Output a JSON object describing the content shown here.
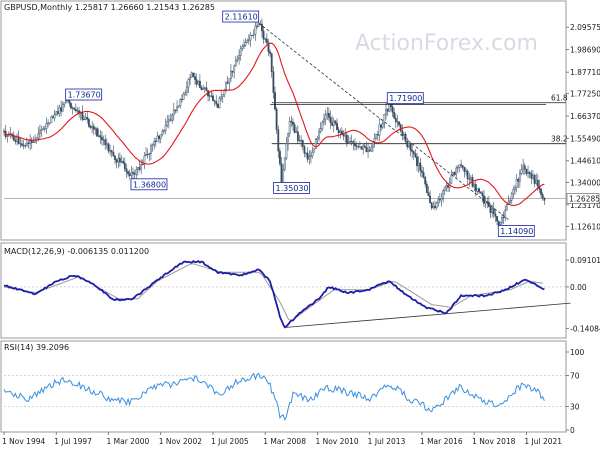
{
  "header": {
    "symbol": "GBPUSD,Monthly",
    "ohlc": "1.25817 1.26660 1.21543 1.26285"
  },
  "watermark": "ActionForex.com",
  "colors": {
    "candle": "#34495e",
    "ma": "#e3171b",
    "macd": "#1c1ca8",
    "signal": "#9a9a9a",
    "rsi": "#3a8fe0",
    "label_border": "#1c1ca8"
  },
  "chart_data": [
    {
      "type": "candlestick",
      "name": "price",
      "ylim": [
        1.08,
        2.16
      ],
      "y_ticks": [
        "2.09575",
        "1.98690",
        "1.87710",
        "1.77250",
        "1.66370",
        "1.55490",
        "1.44610",
        "1.34000",
        "1.23170",
        "1.12610"
      ],
      "y_tick_values": [
        2.09575,
        1.9869,
        1.8771,
        1.7725,
        1.6637,
        1.5549,
        1.4461,
        1.34,
        1.2317,
        1.1261
      ],
      "current_price": "1.26285",
      "current_value": 1.26285,
      "x_ticks": [
        "1 Nov 1994",
        "1 Jul 1997",
        "1 Mar 2000",
        "1 Nov 2002",
        "1 Jul 2005",
        "1 Mar 2008",
        "1 Nov 2010",
        "1 Jul 2013",
        "1 Mar 2016",
        "1 Nov 2018",
        "1 Jul 2021"
      ],
      "x_range": [
        "1994-11",
        "2022-07"
      ],
      "key_points": [
        {
          "date": "1994-11",
          "value": 1.58
        },
        {
          "date": "1996-01",
          "value": 1.52
        },
        {
          "date": "1997-06",
          "value": 1.66
        },
        {
          "date": "1998-02",
          "value": 1.7367,
          "label": "1.73670"
        },
        {
          "date": "1999-06",
          "value": 1.6
        },
        {
          "date": "2000-06",
          "value": 1.47
        },
        {
          "date": "2001-06",
          "value": 1.368,
          "label": "1.36800"
        },
        {
          "date": "2002-06",
          "value": 1.52
        },
        {
          "date": "2003-06",
          "value": 1.66
        },
        {
          "date": "2004-06",
          "value": 1.86
        },
        {
          "date": "2005-10",
          "value": 1.72
        },
        {
          "date": "2006-12",
          "value": 1.98
        },
        {
          "date": "2007-11",
          "value": 2.1161,
          "label": "2.11610"
        },
        {
          "date": "2008-06",
          "value": 1.97
        },
        {
          "date": "2008-11",
          "value": 1.5
        },
        {
          "date": "2009-01",
          "value": 1.3503,
          "label": "1.35030"
        },
        {
          "date": "2009-06",
          "value": 1.64
        },
        {
          "date": "2010-06",
          "value": 1.45
        },
        {
          "date": "2011-04",
          "value": 1.67
        },
        {
          "date": "2012-06",
          "value": 1.54
        },
        {
          "date": "2013-07",
          "value": 1.49
        },
        {
          "date": "2014-07",
          "value": 1.719,
          "label": "1.71900"
        },
        {
          "date": "2015-06",
          "value": 1.53
        },
        {
          "date": "2016-01",
          "value": 1.42
        },
        {
          "date": "2016-10",
          "value": 1.21
        },
        {
          "date": "2018-02",
          "value": 1.43
        },
        {
          "date": "2019-08",
          "value": 1.22
        },
        {
          "date": "2020-03",
          "value": 1.1409,
          "label": "1.14090"
        },
        {
          "date": "2021-05",
          "value": 1.42
        },
        {
          "date": "2022-02",
          "value": 1.33
        },
        {
          "date": "2022-06",
          "value": 1.26285
        }
      ],
      "fib_levels": [
        {
          "label": "61.8",
          "value": 1.7283
        },
        {
          "label": "38.2",
          "value": 1.5292
        }
      ],
      "horizontal_line": {
        "value": 1.719,
        "from": "2008-06",
        "to": "2022-07"
      },
      "trendline": {
        "from": {
          "date": "2007-11",
          "value": 2.1161
        },
        "to": {
          "date": "2020-08",
          "value": 1.16
        }
      },
      "moving_average": {
        "color": "#e3171b"
      }
    },
    {
      "type": "line",
      "name": "macd",
      "title": "MACD(12,26,9) -0.006135 0.011200",
      "ylim": [
        -0.16,
        0.105
      ],
      "y_ticks": [
        "0.091015",
        "0.00",
        "-0.140843"
      ],
      "y_tick_values": [
        0.091015,
        0,
        -0.140843
      ],
      "series": [
        {
          "points": [
            {
              "date": "1994-11",
              "value": 0.005
            },
            {
              "date": "1995-06",
              "value": -0.005
            },
            {
              "date": "1996-06",
              "value": -0.025
            },
            {
              "date": "1997-06",
              "value": 0.015
            },
            {
              "date": "1998-06",
              "value": 0.04
            },
            {
              "date": "1999-06",
              "value": 0.01
            },
            {
              "date": "2000-06",
              "value": -0.045
            },
            {
              "date": "2001-06",
              "value": -0.04
            },
            {
              "date": "2002-06",
              "value": 0.01
            },
            {
              "date": "2003-06",
              "value": 0.06
            },
            {
              "date": "2004-01",
              "value": 0.085
            },
            {
              "date": "2004-12",
              "value": 0.085
            },
            {
              "date": "2005-10",
              "value": 0.05
            },
            {
              "date": "2006-12",
              "value": 0.04
            },
            {
              "date": "2007-11",
              "value": 0.058
            },
            {
              "date": "2008-06",
              "value": 0.02
            },
            {
              "date": "2008-12",
              "value": -0.1
            },
            {
              "date": "2009-03",
              "value": -0.138
            },
            {
              "date": "2009-12",
              "value": -0.09
            },
            {
              "date": "2010-12",
              "value": -0.04
            },
            {
              "date": "2011-06",
              "value": 0.0
            },
            {
              "date": "2012-06",
              "value": -0.02
            },
            {
              "date": "2013-06",
              "value": -0.01
            },
            {
              "date": "2014-07",
              "value": 0.02
            },
            {
              "date": "2015-06",
              "value": -0.03
            },
            {
              "date": "2016-06",
              "value": -0.07
            },
            {
              "date": "2017-06",
              "value": -0.09
            },
            {
              "date": "2018-03",
              "value": -0.03
            },
            {
              "date": "2019-06",
              "value": -0.03
            },
            {
              "date": "2020-06",
              "value": -0.01
            },
            {
              "date": "2021-06",
              "value": 0.025
            },
            {
              "date": "2022-06",
              "value": -0.006135
            }
          ]
        }
      ],
      "signal": [
        {
          "date": "1994-11",
          "value": 0.0
        },
        {
          "date": "1996-06",
          "value": -0.02
        },
        {
          "date": "1997-09",
          "value": 0.01
        },
        {
          "date": "1998-09",
          "value": 0.035
        },
        {
          "date": "2000-09",
          "value": -0.04
        },
        {
          "date": "2001-09",
          "value": -0.04
        },
        {
          "date": "2002-09",
          "value": 0.02
        },
        {
          "date": "2004-06",
          "value": 0.08
        },
        {
          "date": "2005-12",
          "value": 0.05
        },
        {
          "date": "2007-12",
          "value": 0.05
        },
        {
          "date": "2008-12",
          "value": -0.05
        },
        {
          "date": "2009-06",
          "value": -0.12
        },
        {
          "date": "2010-06",
          "value": -0.07
        },
        {
          "date": "2011-09",
          "value": -0.01
        },
        {
          "date": "2013-06",
          "value": -0.01
        },
        {
          "date": "2014-10",
          "value": 0.02
        },
        {
          "date": "2016-09",
          "value": -0.06
        },
        {
          "date": "2017-09",
          "value": -0.07
        },
        {
          "date": "2018-09",
          "value": -0.03
        },
        {
          "date": "2020-09",
          "value": -0.01
        },
        {
          "date": "2021-09",
          "value": 0.02
        },
        {
          "date": "2022-06",
          "value": 0.0112
        }
      ],
      "trendline": {
        "from": {
          "date": "2009-03",
          "value": -0.138
        },
        "to": {
          "date": "2023-10",
          "value": -0.055
        }
      }
    },
    {
      "type": "line",
      "name": "rsi",
      "title": "RSI(14) 39.2096",
      "ylim": [
        0,
        100
      ],
      "y_ticks": [
        "100",
        "70",
        "30",
        "0"
      ],
      "y_tick_values": [
        100,
        70,
        30,
        0
      ],
      "series": [
        {
          "points": [
            {
              "date": "1994-11",
              "value": 50
            },
            {
              "date": "1995-06",
              "value": 45
            },
            {
              "date": "1996-03",
              "value": 40
            },
            {
              "date": "1997-06",
              "value": 60
            },
            {
              "date": "1998-02",
              "value": 65
            },
            {
              "date": "1999-03",
              "value": 52
            },
            {
              "date": "2000-06",
              "value": 38
            },
            {
              "date": "2001-06",
              "value": 36
            },
            {
              "date": "2002-06",
              "value": 55
            },
            {
              "date": "2003-09",
              "value": 60
            },
            {
              "date": "2004-09",
              "value": 68
            },
            {
              "date": "2005-10",
              "value": 46
            },
            {
              "date": "2006-12",
              "value": 64
            },
            {
              "date": "2007-11",
              "value": 70
            },
            {
              "date": "2008-06",
              "value": 58
            },
            {
              "date": "2008-12",
              "value": 20
            },
            {
              "date": "2009-03",
              "value": 15
            },
            {
              "date": "2009-09",
              "value": 50
            },
            {
              "date": "2010-06",
              "value": 36
            },
            {
              "date": "2011-04",
              "value": 55
            },
            {
              "date": "2012-06",
              "value": 48
            },
            {
              "date": "2013-07",
              "value": 40
            },
            {
              "date": "2014-07",
              "value": 60
            },
            {
              "date": "2015-06",
              "value": 42
            },
            {
              "date": "2016-10",
              "value": 25
            },
            {
              "date": "2018-02",
              "value": 55
            },
            {
              "date": "2019-08",
              "value": 35
            },
            {
              "date": "2020-03",
              "value": 30
            },
            {
              "date": "2021-05",
              "value": 60
            },
            {
              "date": "2022-02",
              "value": 48
            },
            {
              "date": "2022-06",
              "value": 39.2096
            }
          ]
        }
      ]
    }
  ]
}
